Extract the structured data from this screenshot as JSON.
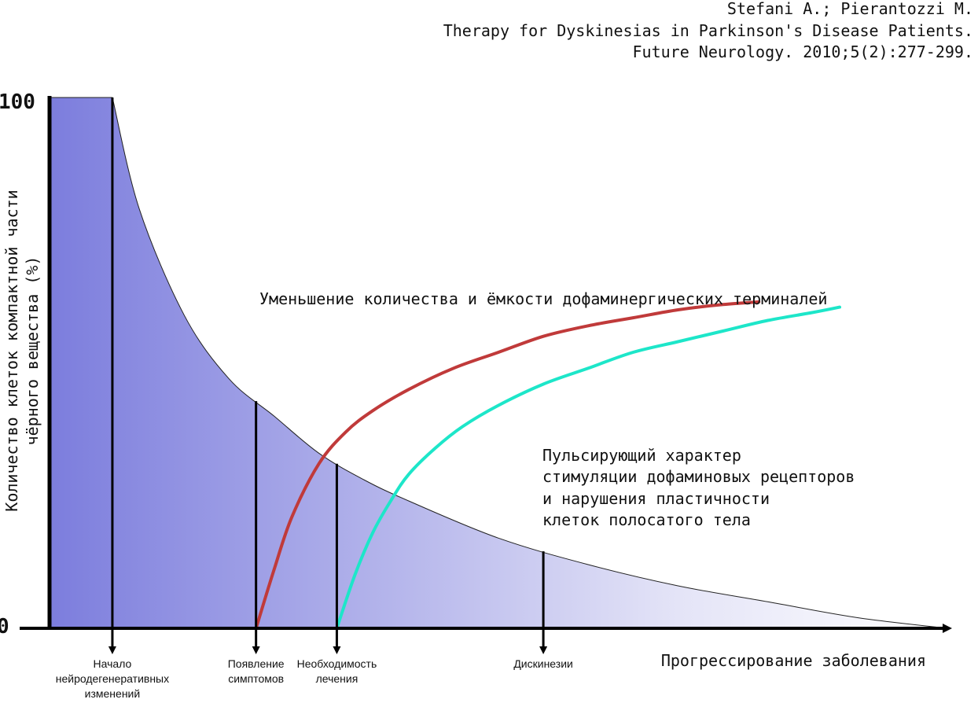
{
  "citation": {
    "line1": "Stefani A.; Pierantozzi M.",
    "line2": "Therapy for Dyskinesias in Parkinson's Disease Patients.",
    "line3": "Future Neurology. 2010;5(2):277-299."
  },
  "chart_data": {
    "type": "area",
    "ylabel_line1": "Количество клеток компактной части",
    "ylabel_line2": "чёрного вещества (%)",
    "xlabel": "Прогрессирование заболевания",
    "y_ticks": [
      "0",
      "100"
    ],
    "ylim": [
      0,
      100
    ],
    "xlim": [
      0,
      100
    ],
    "grid": false,
    "series": [
      {
        "key": "neurons",
        "type": "area",
        "x": [
          0,
          7,
          10,
          15,
          20,
          25,
          30,
          35,
          40,
          50,
          60,
          70,
          80,
          90,
          100
        ],
        "y": [
          100,
          100,
          79,
          59,
          47,
          40,
          33,
          28,
          24,
          17,
          12,
          8,
          5,
          2,
          0
        ]
      },
      {
        "key": "terminals",
        "type": "line",
        "color": "#c03a3a",
        "x": [
          23,
          25,
          27,
          30,
          33,
          36,
          40,
          45,
          50,
          55,
          60,
          65,
          70,
          75,
          79
        ],
        "y": [
          0,
          11,
          21,
          31,
          37,
          41,
          45,
          49,
          52,
          55,
          57,
          58.5,
          60,
          61,
          61.5
        ]
      },
      {
        "key": "receptors",
        "type": "line",
        "color": "#1de6c9",
        "x": [
          32,
          34,
          36,
          38,
          40,
          43,
          46,
          50,
          55,
          60,
          65,
          70,
          75,
          80,
          85,
          88
        ],
        "y": [
          0,
          10,
          18,
          24,
          29,
          34,
          38,
          42,
          46,
          49,
          52,
          54,
          56,
          58,
          59.5,
          60.5
        ]
      }
    ],
    "annotations": {
      "terminals_label": "Уменьшение количества и ёмкости дофаминергических терминалей",
      "receptors_label": [
        "Пульсирующий характер",
        "стимуляции дофаминовых рецепторов",
        "и нарушения пластичности",
        "клеток полосатого тела"
      ]
    },
    "markers": [
      {
        "x": 7,
        "label": [
          "Начало",
          "нейродегенеративных",
          "изменений"
        ]
      },
      {
        "x": 23,
        "label": [
          "Появление",
          "симптомов"
        ]
      },
      {
        "x": 32,
        "label": [
          "Необходимость",
          "лечения"
        ]
      },
      {
        "x": 55,
        "label": [
          "Дискинезии"
        ]
      }
    ],
    "colors": {
      "area_start": "#7c7ddd",
      "area_end": "#ffffff",
      "axis": "#000000"
    }
  }
}
